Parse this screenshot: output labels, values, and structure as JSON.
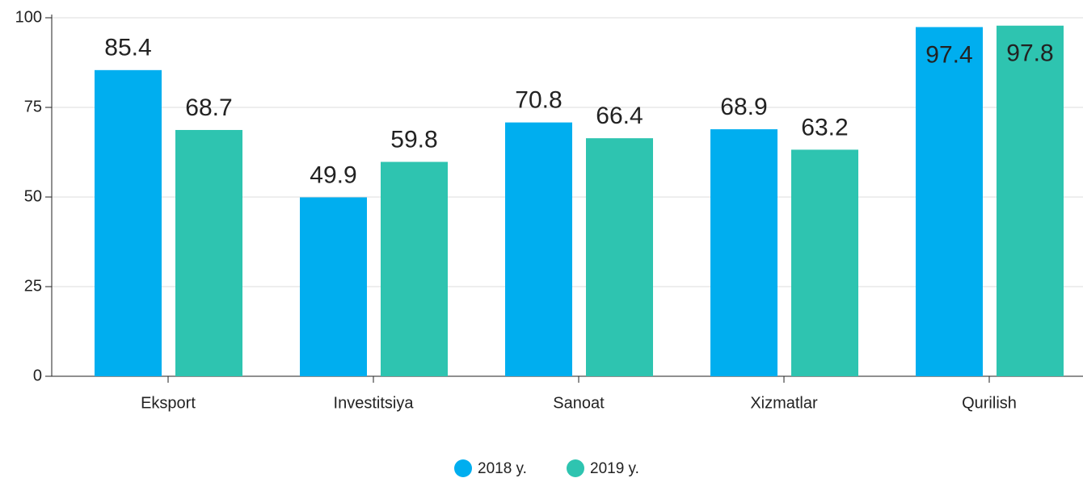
{
  "chart_data": {
    "type": "bar",
    "categories": [
      "Eksport",
      "Investitsiya",
      "Sanoat",
      "Xizmatlar",
      "Qurilish"
    ],
    "series": [
      {
        "name": "2018 y.",
        "color": "#00aeef",
        "values": [
          85.4,
          49.9,
          70.8,
          68.9,
          97.4
        ]
      },
      {
        "name": "2019 y.",
        "color": "#2ec4b0",
        "values": [
          68.7,
          59.8,
          66.4,
          63.2,
          97.8
        ]
      }
    ],
    "ylim": [
      0,
      100
    ],
    "yticks": [
      0,
      25,
      50,
      75,
      100
    ],
    "grid": true,
    "legend": "bottom"
  }
}
